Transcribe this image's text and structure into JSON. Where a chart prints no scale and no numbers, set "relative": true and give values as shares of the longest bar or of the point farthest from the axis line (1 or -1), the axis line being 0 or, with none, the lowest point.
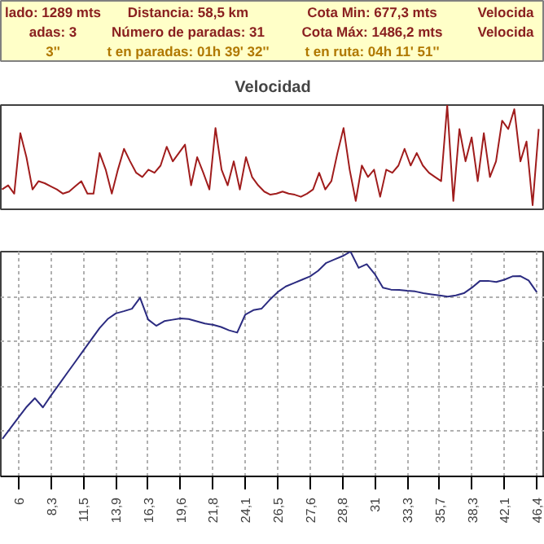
{
  "chart_data": [
    {
      "type": "other",
      "annotations": [
        "lado: 1289 mts",
        "Distancia: 58,5 km",
        "Cota Min: 677,3 mts",
        "Velocida",
        "adas: 3",
        "Número de paradas: 31",
        "Cota Máx: 1486,2 mts",
        "Velocida",
        "3''",
        "t en paradas: 01h 39' 32''",
        "t en ruta: 04h 11' 51''"
      ]
    },
    {
      "type": "line",
      "title": "Velocidad",
      "relative": true,
      "categories": [
        null,
        null,
        null,
        null,
        null,
        null,
        null,
        null,
        null,
        null,
        null,
        null,
        null,
        null,
        null,
        null,
        null,
        null,
        null,
        null,
        null,
        null,
        null,
        null,
        null,
        null,
        null,
        null,
        null,
        null,
        null,
        null,
        null,
        null,
        null,
        null,
        null,
        null,
        null,
        null,
        null,
        null,
        null,
        null,
        null,
        null,
        null,
        null,
        null,
        null,
        null,
        null,
        null,
        null,
        null,
        null,
        null,
        null,
        null,
        null,
        null,
        null,
        null,
        null,
        null,
        null,
        null,
        null,
        null,
        null,
        null,
        null,
        null,
        null,
        null,
        null,
        null,
        null,
        null,
        null,
        null,
        null,
        null,
        null,
        null,
        null,
        null,
        null,
        null
      ],
      "series": [
        {
          "color": "#a01c1c",
          "values": [
            0.19,
            0.23,
            0.15,
            0.73,
            0.5,
            0.19,
            0.27,
            0.25,
            0.22,
            0.19,
            0.15,
            0.17,
            0.22,
            0.27,
            0.15,
            0.15,
            0.54,
            0.38,
            0.15,
            0.38,
            0.58,
            0.46,
            0.35,
            0.31,
            0.38,
            0.35,
            0.42,
            0.6,
            0.46,
            0.54,
            0.62,
            0.23,
            0.5,
            0.35,
            0.19,
            0.78,
            0.38,
            0.23,
            0.46,
            0.19,
            0.5,
            0.31,
            0.23,
            0.17,
            0.14,
            0.15,
            0.17,
            0.15,
            0.14,
            0.12,
            0.15,
            0.19,
            0.35,
            0.19,
            0.27,
            0.54,
            0.78,
            0.38,
            0.08,
            0.42,
            0.31,
            0.38,
            0.12,
            0.38,
            0.35,
            0.42,
            0.58,
            0.42,
            0.54,
            0.42,
            0.35,
            0.31,
            0.27,
            1.0,
            0.08,
            0.77,
            0.46,
            0.69,
            0.27,
            0.73,
            0.31,
            0.46,
            0.85,
            0.77,
            0.96,
            0.46,
            0.65,
            0.04,
            0.77
          ]
        }
      ]
    },
    {
      "type": "line",
      "relative": true,
      "grid": true,
      "categories": [
        null,
        null,
        "6",
        null,
        null,
        null,
        "8,3",
        null,
        null,
        null,
        "11,5",
        null,
        null,
        null,
        "13,9",
        null,
        null,
        null,
        "16,3",
        null,
        null,
        null,
        "19,6",
        null,
        null,
        null,
        "21,8",
        null,
        null,
        null,
        "24,1",
        null,
        null,
        null,
        "26,5",
        null,
        null,
        null,
        "27,6",
        null,
        null,
        null,
        "28,8",
        null,
        null,
        null,
        "31",
        null,
        null,
        null,
        "33,3",
        null,
        null,
        null,
        "35,7",
        null,
        null,
        null,
        "38,3",
        null,
        null,
        null,
        "42,1",
        null,
        null,
        null,
        "46,4"
      ],
      "series": [
        {
          "color": "#2b2b80",
          "values": [
            0.167,
            0.215,
            0.263,
            0.31,
            0.348,
            0.307,
            0.36,
            0.41,
            0.46,
            0.51,
            0.56,
            0.61,
            0.66,
            0.7,
            0.725,
            0.735,
            0.746,
            0.795,
            0.698,
            0.67,
            0.691,
            0.697,
            0.703,
            0.7,
            0.69,
            0.68,
            0.675,
            0.665,
            0.65,
            0.64,
            0.72,
            0.74,
            0.746,
            0.785,
            0.82,
            0.845,
            0.86,
            0.875,
            0.89,
            0.915,
            0.95,
            0.965,
            0.98,
            1.0,
            0.928,
            0.944,
            0.9,
            0.84,
            0.831,
            0.83,
            0.826,
            0.823,
            0.815,
            0.81,
            0.805,
            0.8,
            0.805,
            0.815,
            0.84,
            0.87,
            0.87,
            0.865,
            0.875,
            0.89,
            0.891,
            0.872,
            0.82
          ]
        }
      ]
    }
  ]
}
